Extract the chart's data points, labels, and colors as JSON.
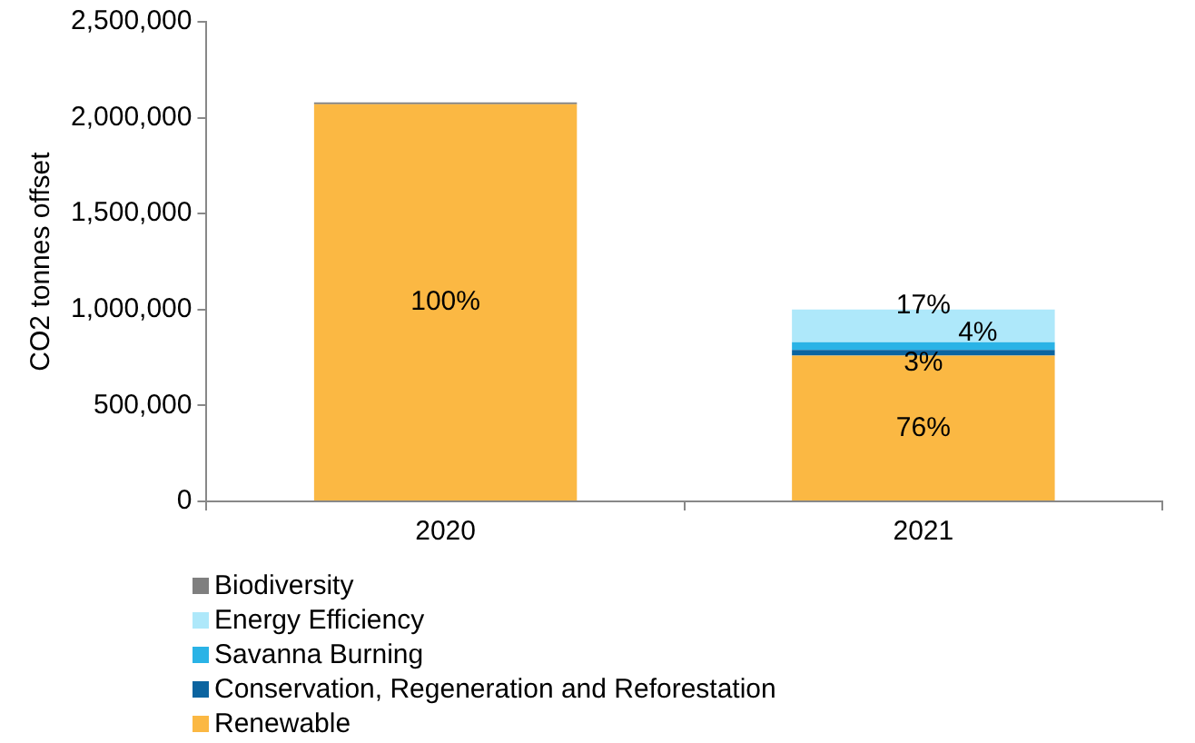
{
  "chart_data": {
    "type": "bar",
    "stacked": true,
    "ylabel": "CO2 tonnes offset",
    "categories": [
      "2020",
      "2021"
    ],
    "ylim": [
      0,
      2500000
    ],
    "yticks": [
      {
        "value": 0,
        "label": "0"
      },
      {
        "value": 500000,
        "label": "500,000"
      },
      {
        "value": 1000000,
        "label": "1,000,000"
      },
      {
        "value": 1500000,
        "label": "1,500,000"
      },
      {
        "value": 2000000,
        "label": "2,000,000"
      },
      {
        "value": 2500000,
        "label": "2,500,000"
      }
    ],
    "grid": false,
    "legend": "bottom",
    "series": [
      {
        "name": "Renewable",
        "color": "#fbb843",
        "values": [
          2070000,
          760000
        ]
      },
      {
        "name": "Conservation, Regeneration and Reforestation",
        "color": "#0b64a0",
        "values": [
          0,
          30000
        ]
      },
      {
        "name": "Savanna Burning",
        "color": "#2ab3e6",
        "values": [
          0,
          40000
        ]
      },
      {
        "name": "Energy Efficiency",
        "color": "#aee8fa",
        "values": [
          0,
          170000
        ]
      },
      {
        "name": "Biodiversity",
        "color": "#7f7f7f",
        "values": [
          10000,
          0
        ]
      }
    ],
    "annotations": [
      "100%",
      "76%",
      {
        "text": "17%",
        "x": "2021",
        "y": 1020000
      },
      {
        "text": "4%",
        "x": "2021",
        "y": 875000
      },
      {
        "text": "3%",
        "x": "2021",
        "y": 720000
      }
    ]
  }
}
